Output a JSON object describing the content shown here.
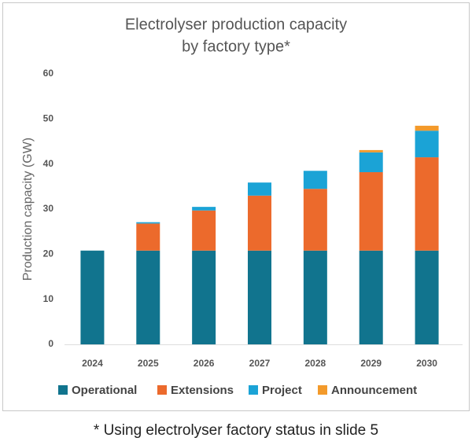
{
  "chart_data": {
    "type": "stacked-bar",
    "title": [
      "Electrolyser production capacity",
      "by factory type*"
    ],
    "y_label": "Production capacity (GW)",
    "categories": [
      "2024",
      "2025",
      "2026",
      "2027",
      "2028",
      "2029",
      "2030"
    ],
    "series": [
      {
        "name": "Operational",
        "color": "#11748e",
        "values": [
          20.8,
          20.8,
          20.8,
          20.8,
          20.8,
          20.8,
          20.8
        ]
      },
      {
        "name": "Extensions",
        "color": "#ec6a2c",
        "values": [
          0,
          6.0,
          8.9,
          12.2,
          13.7,
          17.4,
          20.7
        ]
      },
      {
        "name": "Project",
        "color": "#1ba3d6",
        "values": [
          0,
          0.3,
          0.8,
          2.9,
          4.0,
          4.4,
          5.9
        ]
      },
      {
        "name": "Announcement",
        "color": "#f39a2b",
        "values": [
          0,
          0,
          0,
          0,
          0,
          0.5,
          1.1
        ]
      }
    ],
    "ylim": [
      0,
      60
    ],
    "yticks": [
      0,
      10,
      20,
      30,
      40,
      50,
      60
    ],
    "grid": false,
    "legend": "bottom",
    "footnote": "* Using electrolyser factory status in slide 5"
  }
}
